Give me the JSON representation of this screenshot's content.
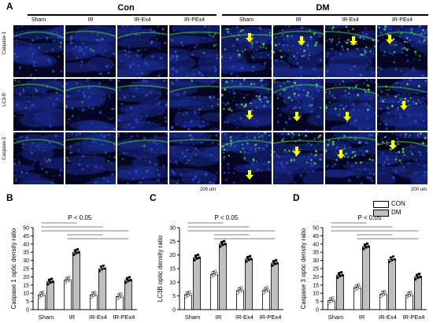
{
  "panel_a": {
    "letter": "A",
    "groups": [
      "Con",
      "DM"
    ],
    "columns": [
      "Sham",
      "IR",
      "IR-Ex4",
      "IR-PEx4",
      "Sham",
      "IR",
      "IR-Ex4",
      "IR-PEx4"
    ],
    "rows": [
      "Caspase-1",
      "LC3-B",
      "Caspase-3"
    ],
    "scale_label_1": "200 um",
    "scale_label_2": "200 um"
  },
  "legend": {
    "con": "CON",
    "dm": "DM"
  },
  "chart_data": [
    {
      "letter": "B",
      "type": "bar",
      "ylabel": "Caspase 1 optic density ratio",
      "categories": [
        "Sham",
        "IR",
        "IR-Ex4",
        "IR-PEx4"
      ],
      "series": [
        {
          "name": "CON",
          "values": [
            9,
            18,
            9,
            8
          ]
        },
        {
          "name": "DM",
          "values": [
            17,
            35,
            25,
            18
          ]
        }
      ],
      "ylim": [
        0,
        50
      ],
      "yticks": [
        0,
        5,
        10,
        15,
        20,
        25,
        30,
        35,
        40,
        45,
        50
      ],
      "annotation": "P < 0.05"
    },
    {
      "letter": "C",
      "type": "bar",
      "ylabel": "LC3B optic density ratio",
      "categories": [
        "Sham",
        "IR",
        "IR-Ex4",
        "IR-PEx4"
      ],
      "series": [
        {
          "name": "CON",
          "values": [
            5.5,
            13,
            7,
            7
          ]
        },
        {
          "name": "DM",
          "values": [
            19,
            24,
            18.5,
            17
          ]
        }
      ],
      "ylim": [
        0,
        30
      ],
      "yticks": [
        0,
        5,
        10,
        15,
        20,
        25,
        30
      ],
      "annotation": "P < 0.05"
    },
    {
      "letter": "D",
      "type": "bar",
      "ylabel": "Caspase 3 optic density ratio",
      "categories": [
        "Sham",
        "IR",
        "IR-Ex4",
        "IR-PEx4"
      ],
      "series": [
        {
          "name": "CON",
          "values": [
            5.5,
            13.5,
            9.5,
            9
          ]
        },
        {
          "name": "DM",
          "values": [
            21,
            38.5,
            30.5,
            20
          ]
        }
      ],
      "ylim": [
        0,
        50
      ],
      "yticks": [
        0,
        5,
        10,
        15,
        20,
        25,
        30,
        35,
        40,
        45,
        50
      ],
      "annotation": "P < 0.05"
    }
  ]
}
